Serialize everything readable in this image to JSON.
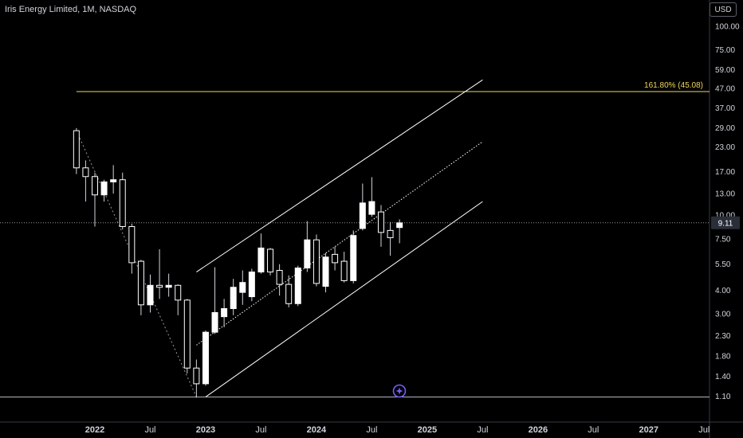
{
  "header": {
    "title": "Iris Energy Limited, 1M, NASDAQ",
    "currency": "USD"
  },
  "chart_data": {
    "type": "candlestick",
    "title": "Iris Energy Limited, 1M, NASDAQ",
    "y_scale": "log",
    "y_ticks": [
      1.1,
      1.4,
      1.8,
      2.3,
      3.0,
      4.0,
      5.5,
      7.5,
      10.0,
      13.0,
      17.0,
      23.0,
      29.0,
      37.0,
      47.0,
      59.0,
      75.0,
      100.0
    ],
    "x_ticks": [
      {
        "label": "2022",
        "date": "2022-01",
        "bold": true
      },
      {
        "label": "Jul",
        "date": "2022-07",
        "bold": false
      },
      {
        "label": "2023",
        "date": "2023-01",
        "bold": true
      },
      {
        "label": "Jul",
        "date": "2023-07",
        "bold": false
      },
      {
        "label": "2024",
        "date": "2024-01",
        "bold": true
      },
      {
        "label": "Jul",
        "date": "2024-07",
        "bold": false
      },
      {
        "label": "2025",
        "date": "2025-01",
        "bold": true
      },
      {
        "label": "Jul",
        "date": "2025-07",
        "bold": false
      },
      {
        "label": "2026",
        "date": "2026-01",
        "bold": true
      },
      {
        "label": "Jul",
        "date": "2026-07",
        "bold": false
      },
      {
        "label": "2027",
        "date": "2027-01",
        "bold": true
      },
      {
        "label": "Jul",
        "date": "2027-07",
        "bold": false
      }
    ],
    "candles": [
      {
        "date": "2021-11",
        "open": 28.0,
        "high": 28.9,
        "low": 16.5,
        "close": 17.8
      },
      {
        "date": "2021-12",
        "open": 17.8,
        "high": 19.5,
        "low": 11.8,
        "close": 16.0
      },
      {
        "date": "2022-01",
        "open": 16.0,
        "high": 16.8,
        "low": 8.7,
        "close": 12.8
      },
      {
        "date": "2022-02",
        "open": 12.8,
        "high": 15.4,
        "low": 11.8,
        "close": 15.0
      },
      {
        "date": "2022-03",
        "open": 15.0,
        "high": 18.4,
        "low": 13.0,
        "close": 15.4
      },
      {
        "date": "2022-04",
        "open": 15.4,
        "high": 16.8,
        "low": 8.4,
        "close": 8.7
      },
      {
        "date": "2022-05",
        "open": 8.7,
        "high": 9.0,
        "low": 4.9,
        "close": 5.6
      },
      {
        "date": "2022-06",
        "open": 5.7,
        "high": 5.8,
        "low": 2.95,
        "close": 3.35
      },
      {
        "date": "2022-07",
        "open": 3.35,
        "high": 4.85,
        "low": 3.05,
        "close": 4.25
      },
      {
        "date": "2022-08",
        "open": 4.25,
        "high": 6.6,
        "low": 3.6,
        "close": 4.15
      },
      {
        "date": "2022-09",
        "open": 4.15,
        "high": 4.9,
        "low": 3.7,
        "close": 4.25
      },
      {
        "date": "2022-10",
        "open": 4.25,
        "high": 4.3,
        "low": 2.95,
        "close": 3.55
      },
      {
        "date": "2022-11",
        "open": 3.55,
        "high": 3.6,
        "low": 1.45,
        "close": 1.55
      },
      {
        "date": "2022-12",
        "open": 1.55,
        "high": 1.72,
        "low": 1.08,
        "close": 1.28
      },
      {
        "date": "2023-01",
        "open": 1.28,
        "high": 2.45,
        "low": 1.25,
        "close": 2.4
      },
      {
        "date": "2023-02",
        "open": 2.4,
        "high": 5.3,
        "low": 2.35,
        "close": 3.05
      },
      {
        "date": "2023-03",
        "open": 2.9,
        "high": 3.6,
        "low": 2.55,
        "close": 3.2
      },
      {
        "date": "2023-04",
        "open": 3.2,
        "high": 4.6,
        "low": 2.95,
        "close": 4.15
      },
      {
        "date": "2023-05",
        "open": 3.9,
        "high": 5.1,
        "low": 3.35,
        "close": 4.4
      },
      {
        "date": "2023-06",
        "open": 3.7,
        "high": 5.2,
        "low": 3.5,
        "close": 5.0
      },
      {
        "date": "2023-07",
        "open": 5.0,
        "high": 8.0,
        "low": 4.9,
        "close": 6.7
      },
      {
        "date": "2023-08",
        "open": 6.6,
        "high": 6.7,
        "low": 4.8,
        "close": 5.0
      },
      {
        "date": "2023-09",
        "open": 5.1,
        "high": 5.5,
        "low": 3.75,
        "close": 4.3
      },
      {
        "date": "2023-10",
        "open": 4.3,
        "high": 4.8,
        "low": 3.25,
        "close": 3.4
      },
      {
        "date": "2023-11",
        "open": 3.4,
        "high": 5.4,
        "low": 3.3,
        "close": 5.25
      },
      {
        "date": "2023-12",
        "open": 5.25,
        "high": 9.3,
        "low": 5.0,
        "close": 7.4
      },
      {
        "date": "2024-01",
        "open": 7.4,
        "high": 7.9,
        "low": 4.2,
        "close": 4.35
      },
      {
        "date": "2024-02",
        "open": 4.2,
        "high": 6.3,
        "low": 3.9,
        "close": 6.0
      },
      {
        "date": "2024-03",
        "open": 6.2,
        "high": 6.8,
        "low": 5.1,
        "close": 5.6
      },
      {
        "date": "2024-04",
        "open": 5.7,
        "high": 6.4,
        "low": 4.4,
        "close": 4.5
      },
      {
        "date": "2024-05",
        "open": 4.5,
        "high": 8.3,
        "low": 4.35,
        "close": 7.8
      },
      {
        "date": "2024-06",
        "open": 8.5,
        "high": 14.7,
        "low": 8.3,
        "close": 11.6
      },
      {
        "date": "2024-07",
        "open": 10.1,
        "high": 15.9,
        "low": 9.8,
        "close": 11.8
      },
      {
        "date": "2024-08",
        "open": 10.4,
        "high": 11.3,
        "low": 6.8,
        "close": 8.1
      },
      {
        "date": "2024-09",
        "open": 8.3,
        "high": 9.2,
        "low": 6.1,
        "close": 7.6
      },
      {
        "date": "2024-10",
        "open": 8.6,
        "high": 9.5,
        "low": 7.1,
        "close": 9.1
      }
    ],
    "current_price": "9.11",
    "fib_level": {
      "label": "161.80% (45.08)",
      "price": 45.08
    },
    "channel": {
      "upper": [
        {
          "date": "2022-12",
          "price": 5.0
        },
        {
          "date": "2025-07",
          "price": 52.0
        }
      ],
      "middle": [
        {
          "date": "2022-12",
          "price": 2.05
        },
        {
          "date": "2025-07",
          "price": 24.5
        }
      ],
      "lower": [
        {
          "date": "2023-01",
          "price": 1.09
        },
        {
          "date": "2025-07",
          "price": 11.8
        }
      ]
    },
    "trend_line": [
      {
        "date": "2021-11",
        "price": 28.0
      },
      {
        "date": "2022-12",
        "price": 1.09
      }
    ],
    "bottom_line_price": 1.09,
    "colors": {
      "background": "#000000",
      "candle_body": "#ffffff",
      "wick": "#d1d4dc",
      "fib": "#f2d65a",
      "channel": "#ffffff",
      "price_tag": "#2a2e39",
      "bottom_line": "#cfcfcf",
      "marker": "#7a5cff"
    }
  }
}
